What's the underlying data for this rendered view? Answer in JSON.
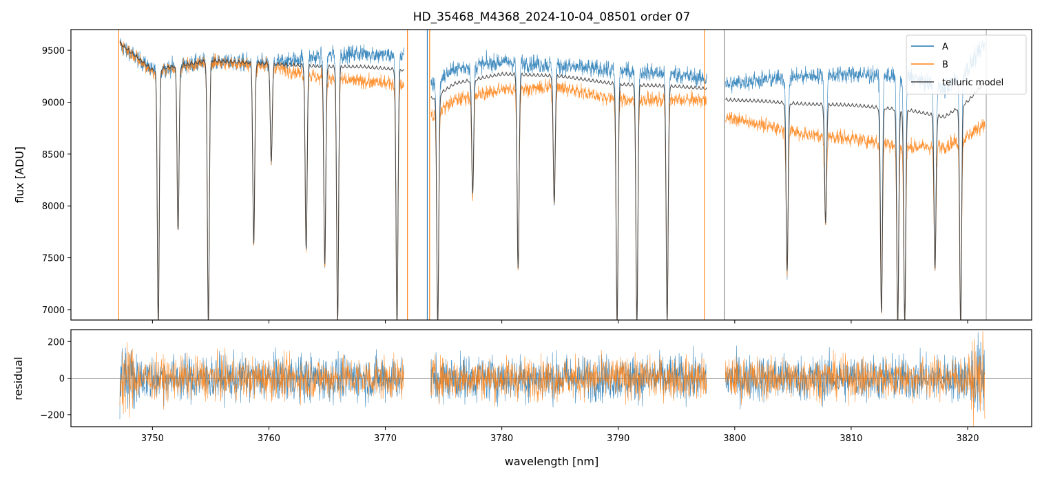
{
  "figure": {
    "title": "HD_35468_M4368_2024-10-04_08501  order 07"
  },
  "chart_data": [
    {
      "type": "line",
      "panel": "main",
      "xlabel": "",
      "ylabel": "flux [ADU]",
      "xlim": [
        3743,
        3825.5
      ],
      "ylim": [
        6900,
        9700
      ],
      "xticks": [
        3750,
        3760,
        3770,
        3780,
        3790,
        3800,
        3810,
        3820
      ],
      "yticks": [
        7000,
        7500,
        8000,
        8500,
        9000,
        9500
      ],
      "x_tick_labels_visible": false,
      "legend": {
        "placement": "top-right",
        "entries": [
          "A",
          "B",
          "telluric model"
        ]
      },
      "grid": false,
      "series": [
        {
          "name": "A",
          "color": "#1f77b4",
          "x": [
            3747.2,
            3750,
            3755,
            3760,
            3765,
            3768,
            3771.5,
            3774,
            3776,
            3780,
            3785,
            3790,
            3795,
            3797.5,
            3799.3,
            3802,
            3806,
            3810,
            3815,
            3818,
            3820,
            3821.5
          ],
          "y": [
            9580,
            9340,
            9420,
            9400,
            9480,
            9500,
            9470,
            9200,
            9350,
            9420,
            9380,
            9330,
            9300,
            9250,
            9200,
            9240,
            9280,
            9300,
            9280,
            9150,
            9350,
            9600
          ]
        },
        {
          "name": "B",
          "color": "#ff7f0e",
          "x": [
            3747.2,
            3750,
            3755,
            3760,
            3765,
            3768,
            3771.5,
            3774,
            3776,
            3780,
            3785,
            3790,
            3795,
            3797.5,
            3799.3,
            3802,
            3806,
            3810,
            3815,
            3818,
            3820,
            3821.5
          ],
          "y": [
            9600,
            9320,
            9420,
            9380,
            9250,
            9230,
            9200,
            8900,
            9050,
            9150,
            9170,
            9050,
            9050,
            9050,
            8880,
            8820,
            8720,
            8680,
            8600,
            8600,
            8700,
            8830
          ]
        },
        {
          "name": "telluric model",
          "color": "#404040",
          "x": [
            3747.2,
            3750,
            3755,
            3760,
            3765,
            3768,
            3771.5,
            3774,
            3776,
            3780,
            3785,
            3790,
            3795,
            3797.5,
            3799.3,
            3802,
            3806,
            3810,
            3815,
            3818,
            3820,
            3821.5
          ],
          "y": [
            9590,
            9330,
            9420,
            9390,
            9360,
            9360,
            9330,
            9050,
            9200,
            9290,
            9270,
            9190,
            9170,
            9150,
            9040,
            9030,
            9000,
            8990,
            8940,
            8875,
            9025,
            9215
          ]
        }
      ],
      "absorption_lines": [
        {
          "x": 3750.5,
          "depth": 6900
        },
        {
          "x": 3752.2,
          "depth": 7800
        },
        {
          "x": 3754.8,
          "depth": 6900
        },
        {
          "x": 3758.7,
          "depth": 7650
        },
        {
          "x": 3760.2,
          "depth": 8450
        },
        {
          "x": 3763.2,
          "depth": 7600
        },
        {
          "x": 3764.8,
          "depth": 7450
        },
        {
          "x": 3765.9,
          "depth": 6900
        },
        {
          "x": 3771.0,
          "depth": 6900
        },
        {
          "x": 3774.5,
          "depth": 6900
        },
        {
          "x": 3777.5,
          "depth": 8150
        },
        {
          "x": 3781.4,
          "depth": 7400
        },
        {
          "x": 3784.5,
          "depth": 8050
        },
        {
          "x": 3789.9,
          "depth": 6900
        },
        {
          "x": 3791.6,
          "depth": 6900
        },
        {
          "x": 3794.2,
          "depth": 6900
        },
        {
          "x": 3804.5,
          "depth": 7400
        },
        {
          "x": 3807.8,
          "depth": 7850
        },
        {
          "x": 3812.6,
          "depth": 7000
        },
        {
          "x": 3814.0,
          "depth": 6900
        },
        {
          "x": 3814.6,
          "depth": 6900
        },
        {
          "x": 3817.2,
          "depth": 7400
        },
        {
          "x": 3819.4,
          "depth": 6900
        }
      ],
      "gaps": [
        [
          3771.6,
          3773.9
        ],
        [
          3797.6,
          3799.2
        ]
      ],
      "markers": [
        {
          "x": 3747.1,
          "color": "#ff7f0e"
        },
        {
          "x": 3771.9,
          "color": "#ff7f0e"
        },
        {
          "x": 3773.6,
          "color": "#1f77b4"
        },
        {
          "x": 3773.8,
          "color": "#ff7f0e"
        },
        {
          "x": 3797.4,
          "color": "#ff7f0e"
        },
        {
          "x": 3799.1,
          "color": "#808080"
        },
        {
          "x": 3821.6,
          "color": "#a0a0a0"
        }
      ]
    },
    {
      "type": "line",
      "panel": "residual",
      "xlabel": "wavelength [nm]",
      "ylabel": "residual",
      "xlim": [
        3743,
        3825.5
      ],
      "ylim": [
        -265,
        265
      ],
      "xticks": [
        3750,
        3760,
        3770,
        3780,
        3790,
        3800,
        3810,
        3820
      ],
      "yticks": [
        -200,
        0,
        200
      ],
      "zero_line": 0,
      "grid": false,
      "series": [
        {
          "name": "A",
          "color": "#1f77b4",
          "x_range": [
            3747.2,
            3821.5
          ],
          "y_spread": [
            -200,
            200
          ]
        },
        {
          "name": "B",
          "color": "#ff7f0e",
          "x_range": [
            3747.2,
            3821.5
          ],
          "y_spread": [
            -180,
            180
          ]
        }
      ]
    }
  ]
}
